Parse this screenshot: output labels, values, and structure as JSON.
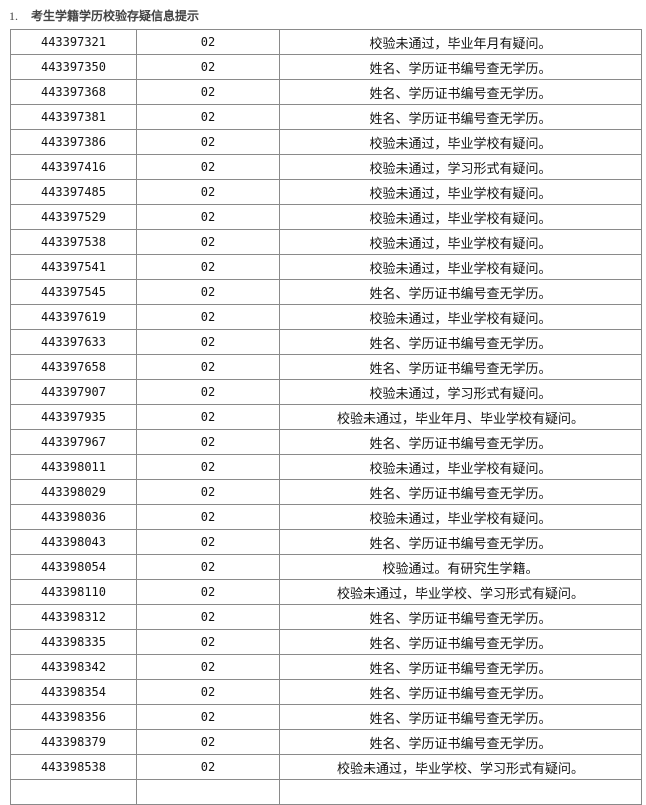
{
  "section": {
    "number": "1.",
    "title": "考生学籍学历校验存疑信息提示"
  },
  "rows": [
    [
      "443397321",
      "02",
      "校验未通过，毕业年月有疑问。"
    ],
    [
      "443397350",
      "02",
      "姓名、学历证书编号查无学历。"
    ],
    [
      "443397368",
      "02",
      "姓名、学历证书编号查无学历。"
    ],
    [
      "443397381",
      "02",
      "姓名、学历证书编号查无学历。"
    ],
    [
      "443397386",
      "02",
      "校验未通过，毕业学校有疑问。"
    ],
    [
      "443397416",
      "02",
      "校验未通过，学习形式有疑问。"
    ],
    [
      "443397485",
      "02",
      "校验未通过，毕业学校有疑问。"
    ],
    [
      "443397529",
      "02",
      "校验未通过，毕业学校有疑问。"
    ],
    [
      "443397538",
      "02",
      "校验未通过，毕业学校有疑问。"
    ],
    [
      "443397541",
      "02",
      "校验未通过，毕业学校有疑问。"
    ],
    [
      "443397545",
      "02",
      "姓名、学历证书编号查无学历。"
    ],
    [
      "443397619",
      "02",
      "校验未通过，毕业学校有疑问。"
    ],
    [
      "443397633",
      "02",
      "姓名、学历证书编号查无学历。"
    ],
    [
      "443397658",
      "02",
      "姓名、学历证书编号查无学历。"
    ],
    [
      "443397907",
      "02",
      "校验未通过，学习形式有疑问。"
    ],
    [
      "443397935",
      "02",
      "校验未通过，毕业年月、毕业学校有疑问。"
    ],
    [
      "443397967",
      "02",
      "姓名、学历证书编号查无学历。"
    ],
    [
      "443398011",
      "02",
      "校验未通过，毕业学校有疑问。"
    ],
    [
      "443398029",
      "02",
      "姓名、学历证书编号查无学历。"
    ],
    [
      "443398036",
      "02",
      "校验未通过，毕业学校有疑问。"
    ],
    [
      "443398043",
      "02",
      "姓名、学历证书编号查无学历。"
    ],
    [
      "443398054",
      "02",
      "校验通过。有研究生学籍。"
    ],
    [
      "443398110",
      "02",
      "校验未通过，毕业学校、学习形式有疑问。"
    ],
    [
      "443398312",
      "02",
      "姓名、学历证书编号查无学历。"
    ],
    [
      "443398335",
      "02",
      "姓名、学历证书编号查无学历。"
    ],
    [
      "443398342",
      "02",
      "姓名、学历证书编号查无学历。"
    ],
    [
      "443398354",
      "02",
      "姓名、学历证书编号查无学历。"
    ],
    [
      "443398356",
      "02",
      "姓名、学历证书编号查无学历。"
    ],
    [
      "443398379",
      "02",
      "姓名、学历证书编号查无学历。"
    ],
    [
      "443398538",
      "02",
      "校验未通过，毕业学校、学习形式有疑问。"
    ],
    [
      "",
      "",
      ""
    ]
  ]
}
